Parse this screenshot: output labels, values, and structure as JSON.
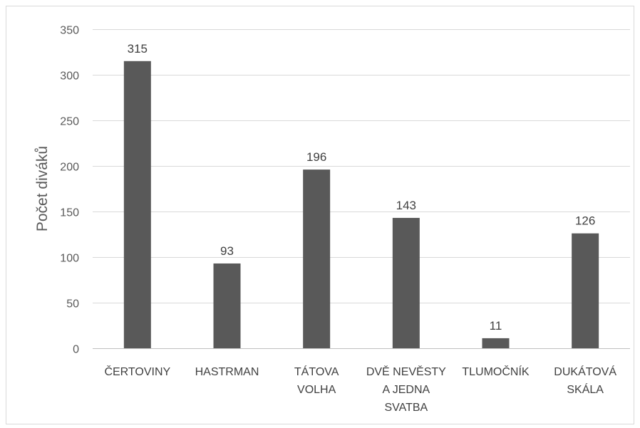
{
  "chart_data": {
    "type": "bar",
    "categories": [
      [
        "ČERTOVINY"
      ],
      [
        "HASTRMAN"
      ],
      [
        "TÁTOVA",
        "VOLHA"
      ],
      [
        "DVĚ NEVĚSTY",
        "A JEDNA",
        "SVATBA"
      ],
      [
        "TLUMOČNÍK"
      ],
      [
        "DUKÁTOVÁ",
        "SKÁLA"
      ]
    ],
    "values": [
      315,
      93,
      196,
      143,
      11,
      126
    ],
    "data_labels": [
      "315",
      "93",
      "196",
      "143",
      "11",
      "126"
    ],
    "title": "",
    "xlabel": "",
    "ylabel": "Počet diváků",
    "ylim": [
      0,
      350
    ],
    "yticks": [
      "0",
      "50",
      "100",
      "150",
      "200",
      "250",
      "300",
      "350"
    ],
    "grid": true,
    "legend": "none",
    "bar_color": "#595959",
    "grid_color": "#d9d9d9"
  }
}
